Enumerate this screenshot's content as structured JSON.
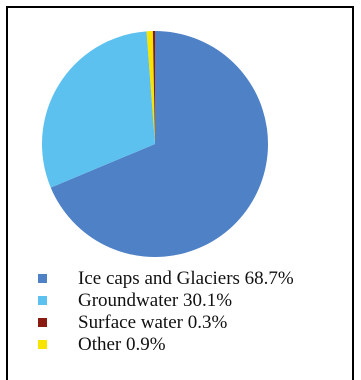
{
  "chart_data": {
    "type": "pie",
    "title": "",
    "slices": [
      {
        "label": "Ice caps and Glaciers",
        "value": 68.7,
        "text": "Ice caps and Glaciers  68.7%",
        "color": "#4f81c7"
      },
      {
        "label": "Groundwater",
        "value": 30.1,
        "text": "Groundwater 30.1%",
        "color": "#5dc1ef"
      },
      {
        "label": "Surface water",
        "value": 0.3,
        "text": "Surface water 0.3%",
        "color": "#8b1a10"
      },
      {
        "label": "Other",
        "value": 0.9,
        "text": "Other 0.9%",
        "color": "#f7e400"
      }
    ],
    "legend_position": "bottom-left"
  }
}
